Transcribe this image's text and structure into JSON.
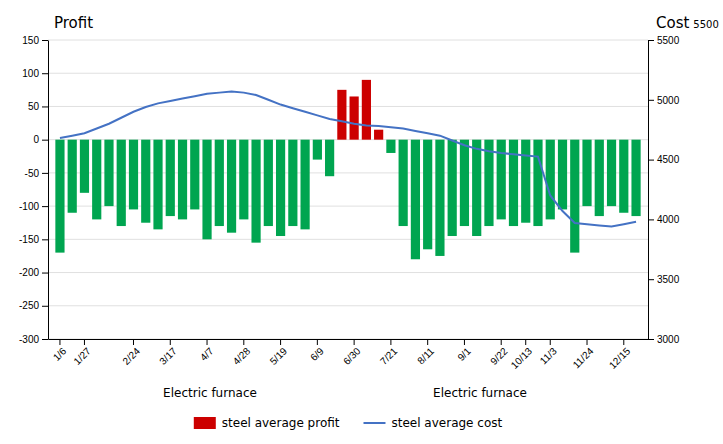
{
  "chart_data": {
    "type": "bar",
    "ylabel": "Profit",
    "y2label": "Cost",
    "annotations": [
      "5500",
      "Electric furnace",
      "Electric furnace"
    ],
    "categories": [
      "1/6",
      null,
      "1/27",
      null,
      null,
      null,
      "2/24",
      null,
      null,
      "3/17",
      null,
      null,
      "4/7",
      null,
      null,
      "4/28",
      null,
      null,
      "5/19",
      null,
      null,
      "6/9",
      null,
      null,
      "6/30",
      null,
      null,
      "7/21",
      null,
      null,
      "8/11",
      null,
      null,
      "9/1",
      null,
      null,
      "9/22",
      null,
      "10/13",
      null,
      "11/3",
      null,
      null,
      "11/24",
      null,
      null,
      "12/15",
      null
    ],
    "series": [
      {
        "name": "steel average profit",
        "type": "bar",
        "color": "#cc0000",
        "colors": [
          "#00a550",
          "#00a550",
          "#00a550",
          "#00a550",
          "#00a550",
          "#00a550",
          "#00a550",
          "#00a550",
          "#00a550",
          "#00a550",
          "#00a550",
          "#00a550",
          "#00a550",
          "#00a550",
          "#00a550",
          "#00a550",
          "#00a550",
          "#00a550",
          "#00a550",
          "#00a550",
          "#00a550",
          "#00a550",
          "#00a550",
          "#cc0000",
          "#cc0000",
          "#cc0000",
          "#cc0000",
          "#00a550",
          "#00a550",
          "#00a550",
          "#00a550",
          "#00a550",
          "#00a550",
          "#00a550",
          "#00a550",
          "#00a550",
          "#00a550",
          "#00a550",
          "#00a550",
          "#00a550",
          "#00a550",
          "#00a550",
          "#00a550",
          "#00a550",
          "#00a550",
          "#00a550",
          "#00a550",
          "#00a550"
        ],
        "values": [
          -170,
          -110,
          -80,
          -120,
          -100,
          -130,
          -105,
          -125,
          -135,
          -115,
          -120,
          -105,
          -150,
          -130,
          -140,
          -120,
          -155,
          -130,
          -145,
          -130,
          -135,
          -30,
          -55,
          75,
          65,
          90,
          15,
          -20,
          -130,
          -180,
          -165,
          -175,
          -145,
          -130,
          -145,
          -130,
          -120,
          -130,
          -125,
          -130,
          -120,
          -105,
          -170,
          -100,
          -115,
          -100,
          -110,
          -115
        ]
      },
      {
        "name": "steel average cost",
        "type": "line",
        "axis": "y2",
        "color": "#4472c4",
        "values": [
          4680,
          4700,
          4720,
          4760,
          4800,
          4850,
          4900,
          4940,
          4970,
          4990,
          5010,
          5030,
          5050,
          5060,
          5070,
          5060,
          5040,
          5000,
          4960,
          4930,
          4900,
          4870,
          4840,
          4820,
          4800,
          4785,
          4780,
          4770,
          4760,
          4740,
          4720,
          4700,
          4660,
          4620,
          4590,
          4570,
          4555,
          4545,
          4535,
          4525,
          4200,
          4070,
          3970,
          3960,
          3950,
          3940,
          3960,
          3980
        ]
      }
    ],
    "ylim": [
      -300,
      150
    ],
    "yticks": [
      150,
      100,
      50,
      0,
      -50,
      -100,
      -150,
      -200,
      -250,
      -300
    ],
    "y2lim": [
      3000,
      5500
    ],
    "y2ticks": [
      5500,
      5000,
      4500,
      4000,
      3500,
      3000
    ],
    "grid": true
  }
}
